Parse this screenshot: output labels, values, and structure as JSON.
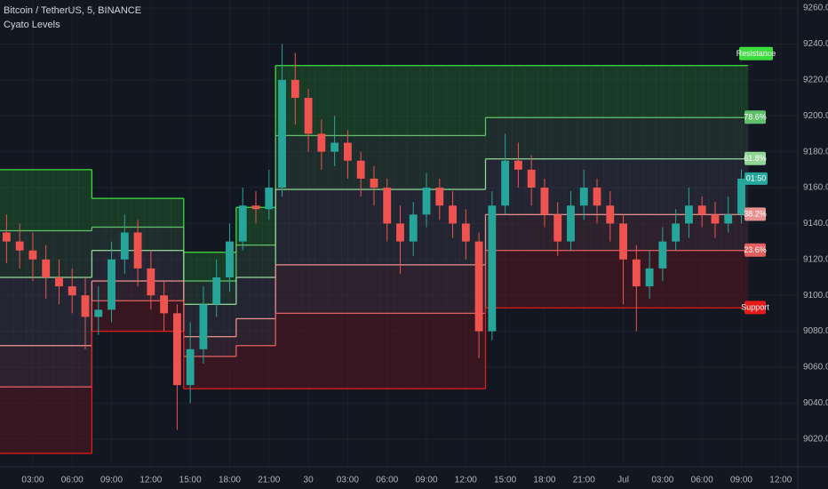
{
  "chart_data": {
    "type": "candlestick",
    "title": "Bitcoin / TetherUS, 5, BINANCE",
    "subtitle": "Cyato Levels",
    "countdown": "01:50",
    "up_color": "#26a69a",
    "down_color": "#ef5350",
    "grid": true,
    "xlim": [
      -0.5,
      60.3
    ],
    "ylim": [
      9007,
      9264.5
    ],
    "xticks": [
      {
        "value": 2,
        "label": "03:00"
      },
      {
        "value": 5,
        "label": "06:00"
      },
      {
        "value": 8,
        "label": "09:00"
      },
      {
        "value": 11,
        "label": "12:00"
      },
      {
        "value": 14,
        "label": "15:00"
      },
      {
        "value": 17,
        "label": "18:00"
      },
      {
        "value": 20,
        "label": "21:00"
      },
      {
        "value": 23,
        "label": "30"
      },
      {
        "value": 26,
        "label": "03:00"
      },
      {
        "value": 29,
        "label": "06:00"
      },
      {
        "value": 32,
        "label": "09:00"
      },
      {
        "value": 35,
        "label": "12:00"
      },
      {
        "value": 38,
        "label": "15:00"
      },
      {
        "value": 41,
        "label": "18:00"
      },
      {
        "value": 44,
        "label": "21:00"
      },
      {
        "value": 47,
        "label": "Jul"
      },
      {
        "value": 50,
        "label": "03:00"
      },
      {
        "value": 53,
        "label": "06:00"
      },
      {
        "value": 56,
        "label": "09:00"
      },
      {
        "value": 59,
        "label": "12:00"
      }
    ],
    "yticks": [
      {
        "value": 9020,
        "label": "9020.00"
      },
      {
        "value": 9040,
        "label": "9040.00"
      },
      {
        "value": 9060,
        "label": "9060.00"
      },
      {
        "value": 9080,
        "label": "9080.00"
      },
      {
        "value": 9100,
        "label": "9100.00"
      },
      {
        "value": 9120,
        "label": "9120.00"
      },
      {
        "value": 9140,
        "label": "9140.00"
      },
      {
        "value": 9160,
        "label": "9160.00"
      },
      {
        "value": 9180,
        "label": "9180.00"
      },
      {
        "value": 9200,
        "label": "9200.00"
      },
      {
        "value": 9220,
        "label": "9220.00"
      },
      {
        "value": 9240,
        "label": "9240.00"
      },
      {
        "value": 9260,
        "label": "9260.00"
      }
    ],
    "candles": {
      "open": [
        9135,
        9130,
        9125,
        9120,
        9110,
        9105,
        9100,
        9088,
        9092,
        9120,
        9135,
        9115,
        9100,
        9090,
        9050,
        9070,
        9095,
        9110,
        9130,
        9150,
        9148,
        9160,
        9220,
        9210,
        9190,
        9180,
        9185,
        9175,
        9165,
        9160,
        9140,
        9130,
        9145,
        9160,
        9150,
        9140,
        9130,
        9080,
        9150,
        9175,
        9170,
        9160,
        9145,
        9130,
        9150,
        9160,
        9150,
        9140,
        9120,
        9105,
        9115,
        9130,
        9140,
        9150,
        9145,
        9140,
        9145
      ],
      "high": [
        9145,
        9140,
        9135,
        9128,
        9120,
        9115,
        9110,
        9105,
        9130,
        9145,
        9142,
        9125,
        9108,
        9095,
        9085,
        9105,
        9120,
        9140,
        9160,
        9158,
        9170,
        9240,
        9235,
        9215,
        9198,
        9200,
        9192,
        9180,
        9172,
        9165,
        9150,
        9152,
        9168,
        9165,
        9158,
        9148,
        9135,
        9158,
        9190,
        9185,
        9178,
        9165,
        9152,
        9158,
        9170,
        9165,
        9158,
        9145,
        9128,
        9125,
        9138,
        9148,
        9160,
        9155,
        9152,
        9155,
        9170
      ],
      "low": [
        9118,
        9115,
        9108,
        9098,
        9095,
        9090,
        9070,
        9078,
        9085,
        9112,
        9105,
        9092,
        9080,
        9025,
        9040,
        9062,
        9088,
        9102,
        9125,
        9140,
        9142,
        9155,
        9195,
        9180,
        9170,
        9172,
        9165,
        9155,
        9150,
        9130,
        9112,
        9122,
        9138,
        9142,
        9132,
        9120,
        9065,
        9075,
        9145,
        9160,
        9150,
        9138,
        9122,
        9125,
        9142,
        9140,
        9130,
        9095,
        9080,
        9098,
        9108,
        9125,
        9132,
        9138,
        9132,
        9135,
        9140
      ],
      "close": [
        9130,
        9125,
        9120,
        9110,
        9105,
        9100,
        9088,
        9092,
        9120,
        9135,
        9115,
        9100,
        9090,
        9050,
        9070,
        9095,
        9110,
        9130,
        9150,
        9148,
        9160,
        9220,
        9210,
        9190,
        9180,
        9185,
        9175,
        9165,
        9160,
        9140,
        9130,
        9145,
        9160,
        9150,
        9140,
        9130,
        9080,
        9150,
        9175,
        9170,
        9160,
        9145,
        9130,
        9150,
        9160,
        9150,
        9140,
        9120,
        9105,
        9115,
        9130,
        9140,
        9150,
        9145,
        9140,
        9145,
        9165
      ]
    },
    "series": [
      {
        "name": "Resistance",
        "color": "#3ddc3d",
        "fill": "rgba(40,140,50,0.30)",
        "values": [
          9170,
          9170,
          9170,
          9170,
          9170,
          9170,
          9170,
          9154,
          9154,
          9154,
          9154,
          9154,
          9154,
          9154,
          9124,
          9124,
          9124,
          9124,
          9149,
          9149,
          9149,
          9228,
          9228,
          9228,
          9228,
          9228,
          9228,
          9228,
          9228,
          9228,
          9228,
          9228,
          9228,
          9228,
          9228,
          9228,
          9228,
          9228,
          9228,
          9228,
          9228,
          9228,
          9228,
          9228,
          9228,
          9228,
          9228,
          9228,
          9228,
          9228,
          9228,
          9228,
          9228,
          9228,
          9228,
          9228,
          9228
        ]
      },
      {
        "name": "78.6%",
        "color": "#5fbf6a",
        "fill": "rgba(60,100,70,0.30)",
        "values": [
          9136,
          9136,
          9136,
          9136,
          9136,
          9136,
          9136,
          9138,
          9138,
          9138,
          9138,
          9138,
          9138,
          9138,
          9108,
          9108,
          9108,
          9108,
          9128,
          9128,
          9128,
          9189,
          9189,
          9189,
          9189,
          9189,
          9189,
          9189,
          9189,
          9189,
          9189,
          9189,
          9189,
          9189,
          9189,
          9189,
          9189,
          9199,
          9199,
          9199,
          9199,
          9199,
          9199,
          9199,
          9199,
          9199,
          9199,
          9199,
          9199,
          9199,
          9199,
          9199,
          9199,
          9199,
          9199,
          9199,
          9199
        ]
      },
      {
        "name": "61.8%",
        "color": "#8fd694",
        "fill": "rgba(80,80,95,0.28)",
        "values": [
          9110,
          9110,
          9110,
          9110,
          9110,
          9110,
          9110,
          9125,
          9125,
          9125,
          9125,
          9125,
          9125,
          9125,
          9095,
          9095,
          9095,
          9095,
          9110,
          9110,
          9110,
          9159,
          9159,
          9159,
          9159,
          9159,
          9159,
          9159,
          9159,
          9159,
          9159,
          9159,
          9159,
          9159,
          9159,
          9159,
          9159,
          9176,
          9176,
          9176,
          9176,
          9176,
          9176,
          9176,
          9176,
          9176,
          9176,
          9176,
          9176,
          9176,
          9176,
          9176,
          9176,
          9176,
          9176,
          9176,
          9176
        ]
      },
      {
        "name": "38.2%",
        "color": "#e8918f",
        "fill": "rgba(100,55,65,0.32)",
        "values": [
          9072,
          9072,
          9072,
          9072,
          9072,
          9072,
          9072,
          9108,
          9108,
          9108,
          9108,
          9108,
          9108,
          9108,
          9077,
          9077,
          9077,
          9077,
          9087,
          9087,
          9087,
          9117,
          9117,
          9117,
          9117,
          9117,
          9117,
          9117,
          9117,
          9117,
          9117,
          9117,
          9117,
          9117,
          9117,
          9117,
          9117,
          9145,
          9145,
          9145,
          9145,
          9145,
          9145,
          9145,
          9145,
          9145,
          9145,
          9145,
          9145,
          9145,
          9145,
          9145,
          9145,
          9145,
          9145,
          9145,
          9145
        ]
      },
      {
        "name": "23.6%",
        "color": "#e06060",
        "fill": "rgba(120,20,30,0.35)",
        "values": [
          9049,
          9049,
          9049,
          9049,
          9049,
          9049,
          9049,
          9097,
          9097,
          9097,
          9097,
          9097,
          9097,
          9097,
          9066,
          9066,
          9066,
          9066,
          9072,
          9072,
          9072,
          9090,
          9090,
          9090,
          9090,
          9090,
          9090,
          9090,
          9090,
          9090,
          9090,
          9090,
          9090,
          9090,
          9090,
          9090,
          9090,
          9125,
          9125,
          9125,
          9125,
          9125,
          9125,
          9125,
          9125,
          9125,
          9125,
          9125,
          9125,
          9125,
          9125,
          9125,
          9125,
          9125,
          9125,
          9125,
          9125
        ]
      },
      {
        "name": "Support",
        "color": "#e31b1b",
        "values": [
          9012,
          9012,
          9012,
          9012,
          9012,
          9012,
          9012,
          9080,
          9080,
          9080,
          9080,
          9080,
          9080,
          9080,
          9048,
          9048,
          9048,
          9048,
          9048,
          9048,
          9048,
          9048,
          9048,
          9048,
          9048,
          9048,
          9048,
          9048,
          9048,
          9048,
          9048,
          9048,
          9048,
          9048,
          9048,
          9048,
          9048,
          9093,
          9093,
          9093,
          9093,
          9093,
          9093,
          9093,
          9093,
          9093,
          9093,
          9093,
          9093,
          9093,
          9093,
          9093,
          9093,
          9093,
          9093,
          9093,
          9093
        ]
      }
    ]
  }
}
